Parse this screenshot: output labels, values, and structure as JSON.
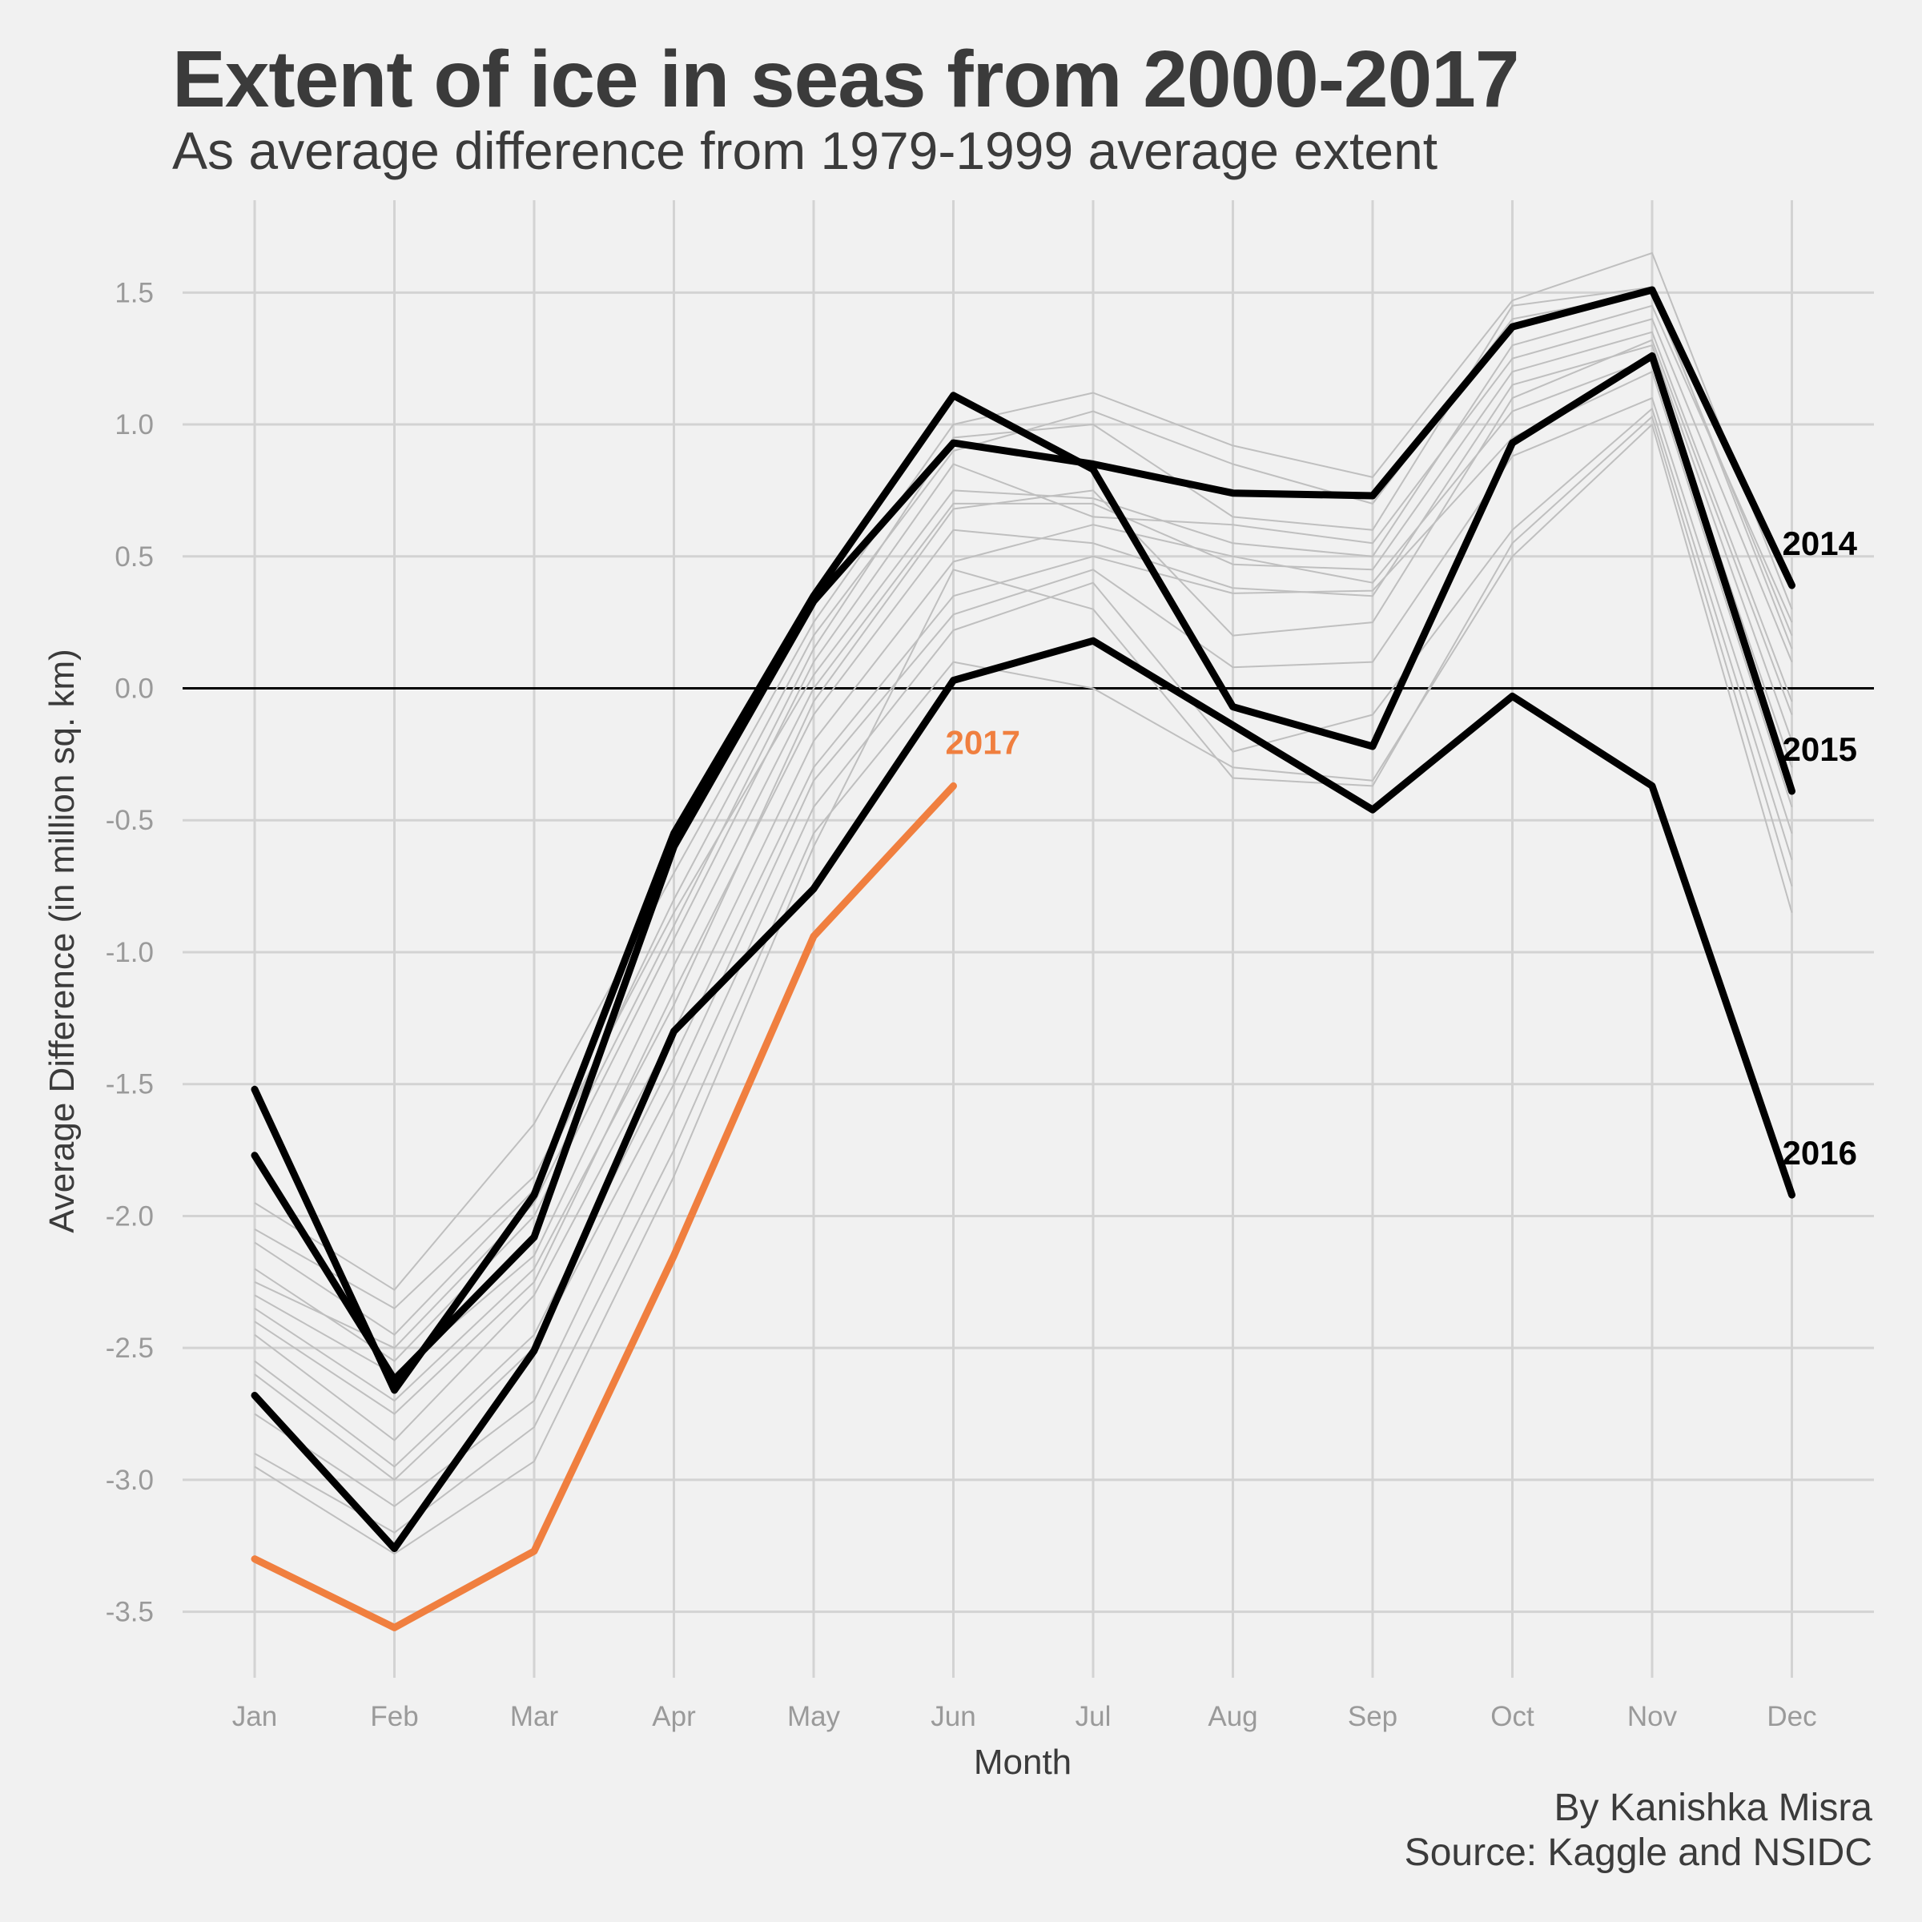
{
  "title": "Extent of ice in seas from 2000-2017",
  "subtitle": "As average difference from 1979-1999 average extent",
  "caption": {
    "line1": "By Kanishka Misra",
    "line2": "Source: Kaggle and NSIDC"
  },
  "colors": {
    "background": "#f1f1f1",
    "grid": "#d3d3d3",
    "background_series": "#bfbfbf",
    "highlight_series": "#000000",
    "current_year": "#f07f3f",
    "zero_line": "#000000"
  },
  "chart_data": {
    "type": "line",
    "title": "Extent of ice in seas from 2000-2017",
    "subtitle": "As average difference from 1979-1999 average extent",
    "xlabel": "Month",
    "ylabel": "Average Difference (in million sq. km)",
    "categories": [
      "Jan",
      "Feb",
      "Mar",
      "Apr",
      "May",
      "Jun",
      "Jul",
      "Aug",
      "Sep",
      "Oct",
      "Nov",
      "Dec"
    ],
    "ylim": [
      -3.75,
      1.85
    ],
    "yticks": [
      1.5,
      1.0,
      0.5,
      0.0,
      -0.5,
      -1.0,
      -1.5,
      -2.0,
      -2.5,
      -3.0,
      -3.5
    ],
    "ytick_labels": [
      "1.5",
      "1.0",
      "0.5",
      "0.0",
      "-0.5",
      "-1.0",
      "-1.5",
      "-2.0",
      "-2.5",
      "-3.0",
      "-3.5"
    ],
    "grid": true,
    "reference_line": 0,
    "highlighted_series": [
      {
        "name": "2014",
        "values": [
          -1.77,
          -2.62,
          -2.08,
          -0.6,
          0.33,
          0.93,
          0.85,
          0.74,
          0.73,
          1.37,
          1.51,
          0.39
        ]
      },
      {
        "name": "2015",
        "values": [
          -1.52,
          -2.66,
          -1.92,
          -0.55,
          0.35,
          1.11,
          0.83,
          -0.07,
          -0.22,
          0.93,
          1.26,
          -0.39
        ]
      },
      {
        "name": "2016",
        "values": [
          -2.68,
          -3.26,
          -2.51,
          -1.3,
          -0.76,
          0.03,
          0.18,
          -0.14,
          -0.46,
          -0.03,
          -0.37,
          -1.92
        ]
      },
      {
        "name": "2017",
        "values": [
          -3.3,
          -3.56,
          -3.27,
          -2.15,
          -0.94,
          -0.37
        ]
      }
    ],
    "background_series": [
      {
        "values": [
          -2.05,
          -2.35,
          -1.85,
          -0.85,
          0.05,
          0.75,
          0.72,
          0.55,
          0.5,
          1.3,
          1.45,
          0.25
        ]
      },
      {
        "values": [
          -2.2,
          -2.55,
          -2.0,
          -0.95,
          0.1,
          0.85,
          0.65,
          0.62,
          0.55,
          1.25,
          1.4,
          0.1
        ]
      },
      {
        "values": [
          -2.3,
          -2.6,
          -2.15,
          -1.05,
          0.0,
          0.7,
          0.7,
          0.47,
          0.45,
          1.2,
          1.35,
          -0.05
        ]
      },
      {
        "values": [
          -1.95,
          -2.28,
          -1.65,
          -0.7,
          0.25,
          1.0,
          1.12,
          0.92,
          0.8,
          1.47,
          1.65,
          0.3
        ]
      },
      {
        "values": [
          -2.4,
          -2.75,
          -2.25,
          -1.15,
          -0.1,
          0.6,
          0.55,
          0.38,
          0.35,
          1.15,
          1.3,
          -0.2
        ]
      },
      {
        "values": [
          -2.45,
          -2.85,
          -2.3,
          -1.3,
          -0.2,
          0.48,
          0.62,
          0.5,
          0.4,
          1.05,
          1.25,
          -0.3
        ]
      },
      {
        "values": [
          -2.55,
          -2.95,
          -2.45,
          -1.4,
          -0.3,
          0.35,
          0.5,
          0.36,
          0.37,
          0.95,
          1.2,
          -0.45
        ]
      },
      {
        "values": [
          -2.6,
          -3.0,
          -2.5,
          -1.5,
          -0.35,
          0.28,
          0.45,
          0.08,
          0.1,
          0.88,
          1.1,
          -0.55
        ]
      },
      {
        "values": [
          -2.75,
          -3.1,
          -2.7,
          -1.6,
          -0.45,
          0.22,
          0.4,
          -0.24,
          -0.1,
          0.6,
          1.06,
          -0.65
        ]
      },
      {
        "values": [
          -2.9,
          -3.2,
          -2.8,
          -1.75,
          -0.55,
          0.1,
          0.0,
          -0.3,
          -0.35,
          0.5,
          1.0,
          -0.85
        ]
      },
      {
        "values": [
          -2.95,
          -3.28,
          -2.93,
          -1.85,
          -0.6,
          0.45,
          0.3,
          -0.34,
          -0.37,
          0.55,
          1.03,
          -0.75
        ]
      },
      {
        "values": [
          -2.1,
          -2.45,
          -1.9,
          -0.8,
          0.2,
          0.9,
          1.05,
          0.85,
          0.7,
          1.4,
          1.5,
          0.2
        ]
      },
      {
        "values": [
          -2.25,
          -2.5,
          -1.95,
          -0.9,
          0.15,
          0.95,
          1.0,
          0.65,
          0.6,
          1.45,
          1.52,
          0.15
        ]
      },
      {
        "values": [
          -2.35,
          -2.7,
          -2.2,
          -1.2,
          -0.05,
          0.68,
          0.75,
          0.2,
          0.25,
          1.1,
          1.32,
          -0.1
        ]
      }
    ]
  }
}
